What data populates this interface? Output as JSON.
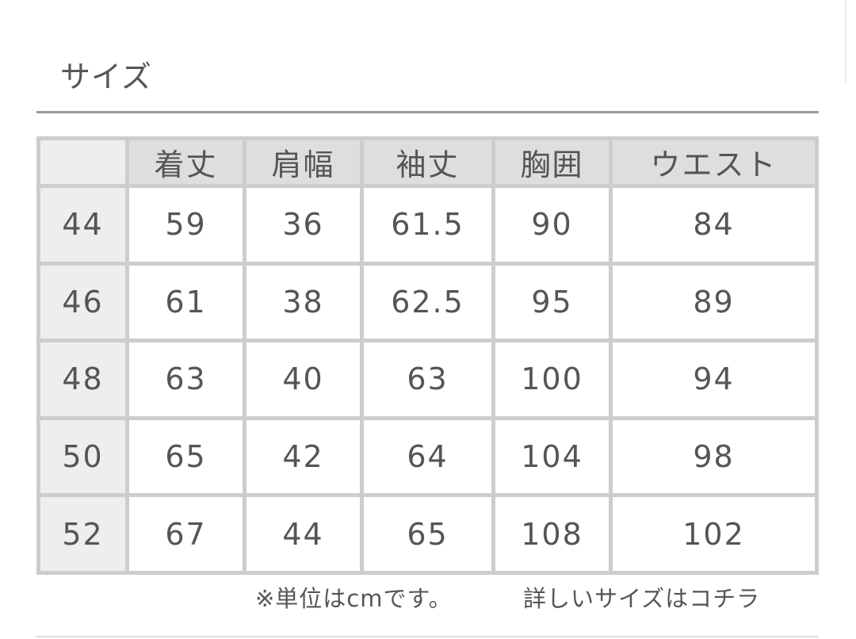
{
  "section": {
    "title": "サイズ"
  },
  "table": {
    "headers": [
      "",
      "着丈",
      "肩幅",
      "袖丈",
      "胸囲",
      "ウエスト"
    ],
    "rows": [
      [
        "44",
        "59",
        "36",
        "61.5",
        "90",
        "84"
      ],
      [
        "46",
        "61",
        "38",
        "62.5",
        "95",
        "89"
      ],
      [
        "48",
        "63",
        "40",
        "63",
        "100",
        "94"
      ],
      [
        "50",
        "65",
        "42",
        "64",
        "104",
        "98"
      ],
      [
        "52",
        "67",
        "44",
        "65",
        "108",
        "102"
      ]
    ]
  },
  "footer": {
    "unit_note": "※単位はcmです。",
    "detail_link": "詳しいサイズはコチラ"
  },
  "colors": {
    "header_bg": "#dedede",
    "size_col_bg": "#eeeeee",
    "border": "#cdcdcd",
    "text": "#555555"
  }
}
